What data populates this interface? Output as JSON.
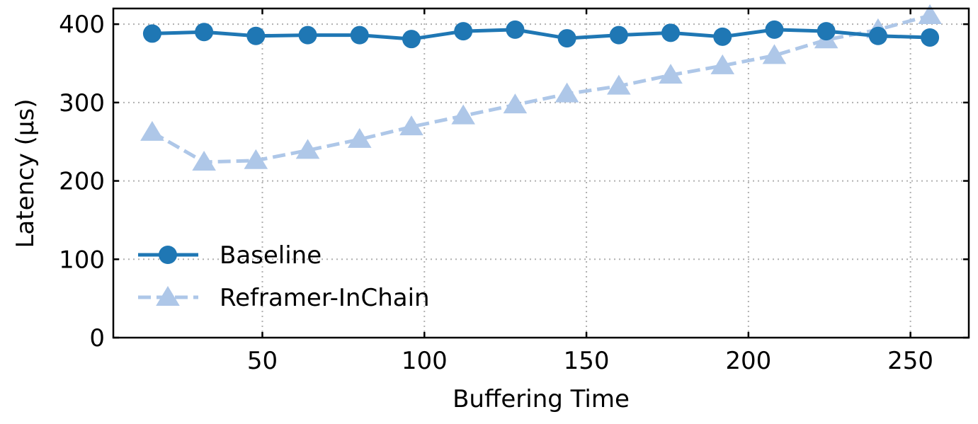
{
  "chart_data": {
    "type": "line",
    "xlabel": "Buffering Time",
    "ylabel": "Latency (µs)",
    "xlim": [
      4,
      268
    ],
    "ylim": [
      0,
      420
    ],
    "xticks": [
      50,
      100,
      150,
      200,
      250
    ],
    "yticks": [
      0,
      100,
      200,
      300,
      400
    ],
    "grid": true,
    "legend_position": "lower-left",
    "x": [
      16,
      32,
      48,
      64,
      80,
      96,
      112,
      128,
      144,
      160,
      176,
      192,
      208,
      224,
      240,
      256
    ],
    "series": [
      {
        "name": "Baseline",
        "color": "#1f77b4",
        "marker": "circle",
        "linestyle": "solid",
        "values": [
          388,
          390,
          385,
          386,
          386,
          381,
          391,
          393,
          382,
          386,
          389,
          384,
          393,
          391,
          385,
          383
        ]
      },
      {
        "name": "Reframer-InChain",
        "color": "#aec7e8",
        "marker": "triangle",
        "linestyle": "dashed",
        "values": [
          262,
          224,
          226,
          239,
          253,
          269,
          283,
          297,
          311,
          321,
          335,
          347,
          360,
          380,
          393,
          411
        ]
      }
    ]
  }
}
